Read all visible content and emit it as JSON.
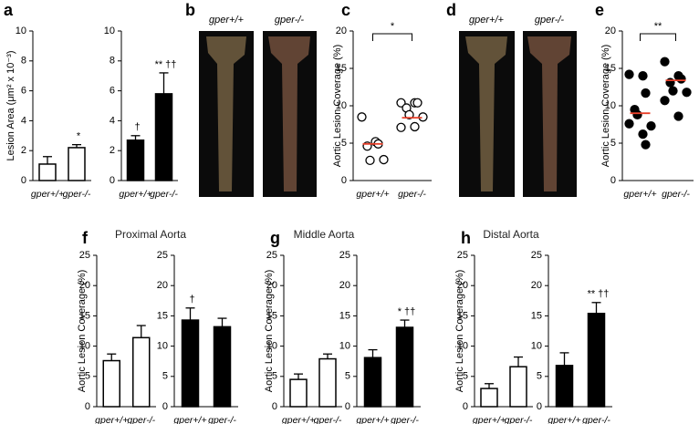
{
  "panel_labels": [
    "a",
    "b",
    "c",
    "d",
    "e",
    "f",
    "g",
    "h"
  ],
  "images": [
    {
      "labels": [
        "gper+/+",
        "gper-/-"
      ]
    },
    {
      "labels": [
        "gper+/+",
        "gper-/-"
      ]
    }
  ],
  "chart_data": [
    {
      "type": "bar",
      "ylabel": "Lesion Area (μm² x 10⁻³)",
      "categories": [
        "gper+/+",
        "gper-/-"
      ],
      "values": [
        1.1,
        2.2
      ],
      "errors": [
        0.5,
        0.2
      ],
      "annotations": [
        null,
        "*"
      ],
      "color": "#ffffff",
      "ylim": [
        0,
        10
      ],
      "yticks": [
        0,
        2,
        4,
        6,
        8,
        10
      ]
    },
    {
      "type": "bar",
      "categories": [
        "gper+/+",
        "gper-/-"
      ],
      "values": [
        2.7,
        5.8
      ],
      "errors": [
        0.3,
        1.4
      ],
      "annotations": [
        "†",
        "** ††"
      ],
      "color": "#000000",
      "ylim": [
        0,
        10
      ],
      "yticks": [
        0,
        2,
        4,
        6,
        8,
        10
      ]
    },
    {
      "type": "dot",
      "ylabel": "Aortic Lesion Coverage (%)",
      "categories": [
        "gper+/+",
        "gper-/-"
      ],
      "values": [
        [
          8.5,
          5.2,
          4.9,
          4.6,
          2.7,
          2.8
        ],
        [
          10.4,
          10.4,
          10.4,
          9.7,
          8.8,
          8.5,
          7.1,
          7.2
        ]
      ],
      "medians": [
        4.9,
        8.4
      ],
      "median_color": "#e8402a",
      "color": "#ffffff",
      "significance": "*",
      "ylim": [
        0,
        20
      ],
      "yticks": [
        0,
        5,
        10,
        15,
        20
      ]
    },
    {
      "type": "dot",
      "ylabel": "Aortic Lesion Coverage (%)",
      "categories": [
        "gper+/+",
        "gper-/-"
      ],
      "values": [
        [
          14.2,
          14.0,
          11.7,
          9.5,
          8.8,
          7.3,
          7.6,
          6.2,
          4.8
        ],
        [
          15.9,
          14.0,
          13.6,
          13.1,
          12.0,
          11.8,
          10.7,
          8.6
        ]
      ],
      "medians": [
        9.0,
        13.4
      ],
      "median_color": "#e8402a",
      "color": "#000000",
      "significance": "**",
      "ylim": [
        0,
        20
      ],
      "yticks": [
        0,
        5,
        10,
        15,
        20
      ]
    },
    {
      "type": "bar",
      "title": "Proximal Aorta",
      "ylabel": "Aortic Lesion Coverage (%)",
      "categories": [
        "gper+/+",
        "gper-/-"
      ],
      "values": [
        7.6,
        11.4
      ],
      "errors": [
        1.1,
        2.0
      ],
      "annotations": [
        null,
        null
      ],
      "color": "#ffffff",
      "ylim": [
        0,
        25
      ],
      "yticks": [
        0,
        5,
        10,
        15,
        20,
        25
      ]
    },
    {
      "type": "bar",
      "categories": [
        "gper+/+",
        "gper-/-"
      ],
      "values": [
        14.3,
        13.2
      ],
      "errors": [
        2.0,
        1.4
      ],
      "annotations": [
        "†",
        null
      ],
      "color": "#000000",
      "ylim": [
        0,
        25
      ],
      "yticks": [
        0,
        5,
        10,
        15,
        20,
        25
      ]
    },
    {
      "type": "bar",
      "title": "Middle Aorta",
      "ylabel": "Aortic Lesion Coverage (%)",
      "categories": [
        "gper+/+",
        "gper-/-"
      ],
      "values": [
        4.5,
        7.9
      ],
      "errors": [
        0.9,
        0.8
      ],
      "annotations": [
        null,
        null
      ],
      "color": "#ffffff",
      "ylim": [
        0,
        25
      ],
      "yticks": [
        0,
        5,
        10,
        15,
        20,
        25
      ]
    },
    {
      "type": "bar",
      "categories": [
        "gper+/+",
        "gper-/-"
      ],
      "values": [
        8.1,
        13.1
      ],
      "errors": [
        1.3,
        1.2
      ],
      "annotations": [
        null,
        "* ††"
      ],
      "color": "#000000",
      "ylim": [
        0,
        25
      ],
      "yticks": [
        0,
        5,
        10,
        15,
        20,
        25
      ]
    },
    {
      "type": "bar",
      "title": "Distal Aorta",
      "ylabel": "Aortic Lesion Coverage (%)",
      "categories": [
        "gper+/+",
        "gper-/-"
      ],
      "values": [
        3.0,
        6.6
      ],
      "errors": [
        0.8,
        1.6
      ],
      "annotations": [
        null,
        null
      ],
      "color": "#ffffff",
      "ylim": [
        0,
        25
      ],
      "yticks": [
        0,
        5,
        10,
        15,
        20,
        25
      ]
    },
    {
      "type": "bar",
      "categories": [
        "gper+/+",
        "gper-/-"
      ],
      "values": [
        6.8,
        15.4
      ],
      "errors": [
        2.1,
        1.8
      ],
      "annotations": [
        null,
        "** ††"
      ],
      "color": "#000000",
      "ylim": [
        0,
        25
      ],
      "yticks": [
        0,
        5,
        10,
        15,
        20,
        25
      ]
    }
  ]
}
